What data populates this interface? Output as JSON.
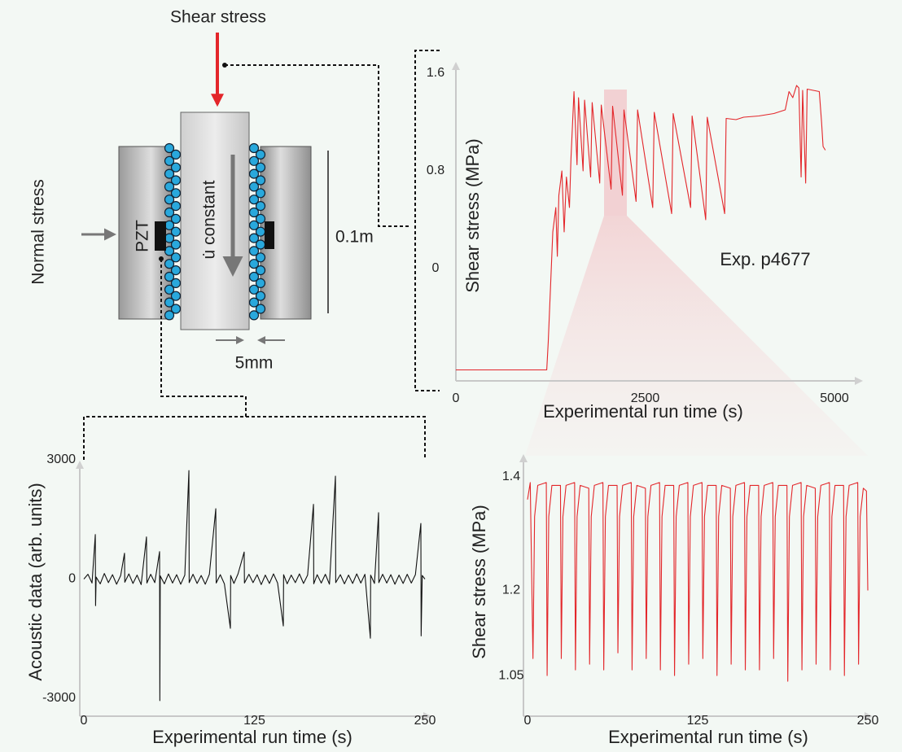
{
  "diagram": {
    "shear_label": "Shear stress",
    "normal_label": "Normal stress",
    "pzt_label": "PZT",
    "velocity_label": "u̇ constant",
    "length_label": "0.1m",
    "gap_label": "5mm"
  },
  "chart_data": [
    {
      "type": "line",
      "annotation": "Exp. p4677",
      "xlabel": "Experimental run time (s)",
      "ylabel": "Shear stress (MPa)",
      "color": "#e3262a",
      "xlim": [
        0,
        5000
      ],
      "ylim": [
        -0.92,
        1.67
      ],
      "xticks": [
        0,
        2500,
        5000
      ],
      "yticks": [
        0,
        0.8,
        1.6
      ],
      "x": [
        0,
        1200,
        1220,
        1280,
        1320,
        1340,
        1360,
        1400,
        1430,
        1460,
        1500,
        1520,
        1560,
        1600,
        1620,
        1680,
        1700,
        1780,
        1800,
        1900,
        1920,
        2050,
        2070,
        2200,
        2220,
        2380,
        2400,
        2600,
        2620,
        2850,
        2870,
        3100,
        3120,
        3300,
        3320,
        3550,
        3570,
        3700,
        3800,
        4000,
        4200,
        4350,
        4400,
        4450,
        4500,
        4530,
        4560,
        4580,
        4620,
        4640,
        4800,
        4830,
        4850,
        4880
      ],
      "values": [
        -0.83,
        -0.83,
        -0.6,
        0.3,
        0.5,
        0.1,
        0.6,
        0.8,
        0.3,
        0.75,
        0.5,
        0.9,
        1.45,
        0.85,
        1.4,
        0.8,
        1.38,
        0.75,
        1.36,
        0.7,
        1.34,
        0.65,
        1.33,
        0.6,
        1.3,
        0.55,
        1.3,
        0.5,
        1.28,
        0.45,
        1.27,
        0.5,
        1.25,
        0.4,
        1.24,
        0.45,
        1.23,
        1.22,
        1.24,
        1.25,
        1.27,
        1.3,
        1.45,
        1.4,
        1.5,
        1.48,
        0.75,
        1.46,
        0.7,
        1.47,
        1.45,
        1.2,
        1.0,
        0.97
      ]
    },
    {
      "type": "line",
      "xlabel": "Experimental run time (s)",
      "ylabel": "Acoustic data (arb. units)",
      "color": "#111111",
      "xlim": [
        0,
        250
      ],
      "ylim": [
        -3000,
        3000
      ],
      "xticks": [
        0,
        125,
        250
      ],
      "yticks": [
        -3000,
        0,
        3000
      ],
      "x": [
        0,
        3,
        6,
        8.4,
        8.6,
        9,
        12,
        15,
        18,
        21,
        24,
        27,
        29.8,
        30,
        33,
        36,
        39,
        42,
        45.9,
        46.2,
        49,
        52,
        55.5,
        55.7,
        56,
        59,
        62,
        65,
        68,
        71,
        74,
        77,
        77.2,
        80,
        83,
        86,
        89,
        92,
        96.7,
        97,
        100,
        103,
        107.4,
        107.6,
        110,
        113,
        117.5,
        117.7,
        121,
        124,
        127,
        130,
        133,
        136,
        139,
        142,
        146.2,
        146.4,
        149,
        152,
        155,
        158,
        161,
        164,
        168.3,
        168.5,
        171,
        174,
        177,
        180,
        184.4,
        184.6,
        188,
        191,
        194,
        197,
        200,
        203,
        206,
        210,
        210.2,
        213,
        216,
        216.2,
        219,
        222,
        225,
        228,
        231,
        234,
        237,
        240,
        243,
        247,
        247.2,
        248,
        250
      ],
      "values": [
        0,
        120,
        -100,
        1120,
        -670,
        50,
        -120,
        140,
        -90,
        110,
        -130,
        90,
        650,
        -80,
        130,
        -110,
        100,
        -140,
        1060,
        -100,
        120,
        -90,
        690,
        -3060,
        80,
        -120,
        130,
        -100,
        110,
        -130,
        100,
        2730,
        -90,
        120,
        -110,
        90,
        -130,
        120,
        1770,
        -100,
        110,
        -120,
        -1240,
        90,
        -110,
        130,
        680,
        -100,
        120,
        -90,
        110,
        -140,
        100,
        -110,
        130,
        -100,
        -1180,
        110,
        -120,
        100,
        -90,
        130,
        -110,
        100,
        1880,
        -120,
        110,
        -100,
        120,
        -130,
        2590,
        -90,
        110,
        -120,
        100,
        -110,
        130,
        -100,
        120,
        -1490,
        100,
        -110,
        1670,
        -90,
        120,
        -100,
        110,
        -130,
        100,
        -110,
        120,
        -100,
        110,
        1400,
        -1430,
        90,
        0
      ]
    },
    {
      "type": "line",
      "xlabel": "Experimental run time (s)",
      "ylabel": "Shear stress (MPa)",
      "color": "#e3262a",
      "xlim": [
        0,
        250
      ],
      "ylim": [
        1.0,
        1.43
      ],
      "xticks": [
        0,
        125,
        250
      ],
      "yticks": [
        1.05,
        1.2,
        1.4
      ],
      "x": [
        0,
        2,
        4,
        5.2,
        7.5,
        13.8,
        14.4,
        15.6,
        17.9,
        24.2,
        24.8,
        26,
        28.3,
        34.6,
        35.2,
        36.4,
        38.7,
        45,
        45.6,
        46.8,
        49.1,
        55.4,
        56,
        57.2,
        59.5,
        65.8,
        66.4,
        67.6,
        69.9,
        76.2,
        76.8,
        78,
        80.3,
        86.6,
        87.2,
        88.4,
        90.7,
        97,
        97.6,
        98.8,
        101.1,
        107.4,
        108,
        109.2,
        111.5,
        117.8,
        118.4,
        119.6,
        121.9,
        128.2,
        128.8,
        130,
        132.3,
        138.6,
        139.2,
        140.4,
        142.7,
        149,
        149.6,
        150.8,
        153.1,
        159.4,
        160,
        161.2,
        163.5,
        169.8,
        170.4,
        171.6,
        173.9,
        180.2,
        180.8,
        182,
        184.3,
        190.6,
        191.2,
        192.4,
        194.7,
        201,
        201.6,
        202.8,
        205.1,
        211.4,
        212,
        213.2,
        215.5,
        221.8,
        222.4,
        223.6,
        225.9,
        232.2,
        232.8,
        234,
        236.3,
        242.6,
        243.2,
        244.4,
        246.7,
        249,
        250
      ],
      "values": [
        1.36,
        1.39,
        1.08,
        1.33,
        1.385,
        1.39,
        1.05,
        1.33,
        1.385,
        1.385,
        1.08,
        1.33,
        1.385,
        1.39,
        1.06,
        1.33,
        1.385,
        1.38,
        1.07,
        1.33,
        1.385,
        1.39,
        1.06,
        1.33,
        1.385,
        1.385,
        1.09,
        1.33,
        1.385,
        1.39,
        1.06,
        1.33,
        1.385,
        1.38,
        1.08,
        1.33,
        1.385,
        1.39,
        1.06,
        1.33,
        1.385,
        1.385,
        1.05,
        1.33,
        1.385,
        1.39,
        1.07,
        1.33,
        1.385,
        1.39,
        1.08,
        1.33,
        1.385,
        1.385,
        1.05,
        1.33,
        1.385,
        1.38,
        1.07,
        1.33,
        1.385,
        1.39,
        1.06,
        1.33,
        1.385,
        1.385,
        1.06,
        1.33,
        1.385,
        1.39,
        1.08,
        1.33,
        1.385,
        1.385,
        1.04,
        1.33,
        1.385,
        1.39,
        1.06,
        1.33,
        1.385,
        1.38,
        1.07,
        1.33,
        1.385,
        1.39,
        1.06,
        1.33,
        1.385,
        1.385,
        1.05,
        1.33,
        1.385,
        1.39,
        1.07,
        1.33,
        1.38,
        1.375,
        1.2
      ]
    }
  ]
}
